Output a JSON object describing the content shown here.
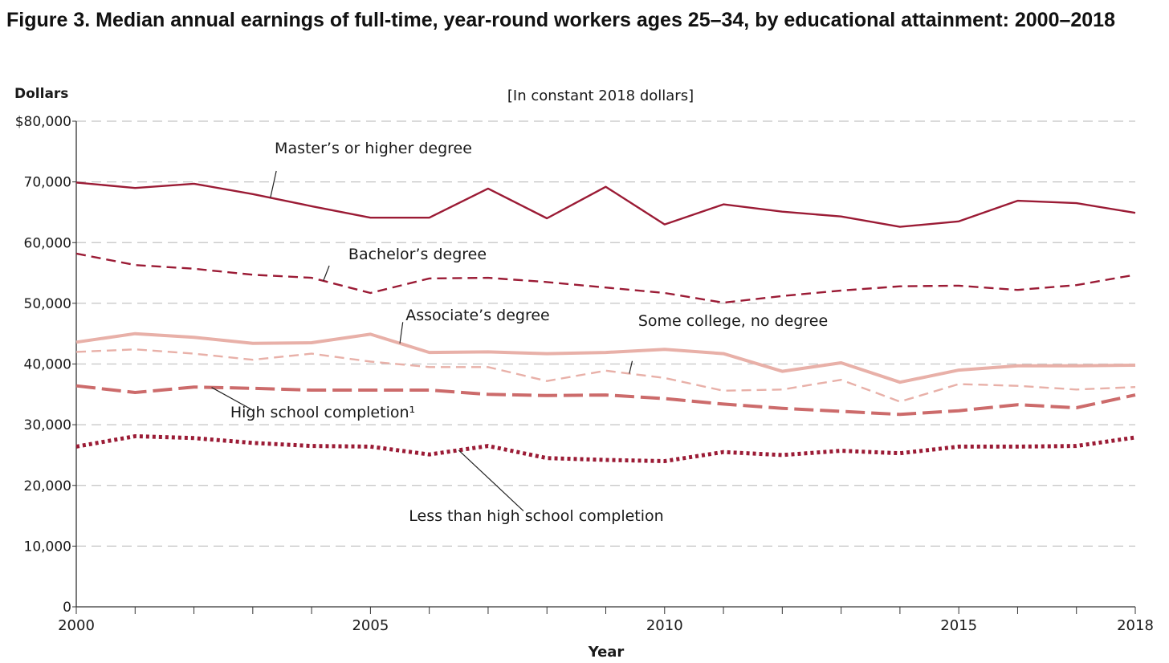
{
  "title": "Figure 3. Median annual earnings of full-time, year-round workers ages 25–34, by educational attainment: 2000–2018",
  "chart_data": {
    "type": "line",
    "subtitle": "[In constant 2018 dollars]",
    "ylabel": "Dollars",
    "xlabel": "Year",
    "ylim": [
      0,
      80000
    ],
    "xlim": [
      2000,
      2018
    ],
    "yticks": [
      0,
      10000,
      20000,
      30000,
      40000,
      50000,
      60000,
      70000,
      80000
    ],
    "ytick_labels": [
      "0",
      "10,000",
      "20,000",
      "30,000",
      "40,000",
      "50,000",
      "60,000",
      "70,000",
      "$80,000"
    ],
    "xticks": [
      2000,
      2005,
      2010,
      2015,
      2018
    ],
    "xtick_labels": [
      "2000",
      "2005",
      "2010",
      "2015",
      "2018"
    ],
    "grid": "horizontal dashed",
    "x": [
      2000,
      2001,
      2002,
      2003,
      2004,
      2005,
      2006,
      2007,
      2008,
      2009,
      2010,
      2011,
      2012,
      2013,
      2014,
      2015,
      2016,
      2017,
      2018
    ],
    "series": [
      {
        "name": "Master’s or higher degree",
        "color": "#9b1b35",
        "style": "solid",
        "values": [
          69900,
          69000,
          69700,
          68000,
          66000,
          64100,
          64100,
          68900,
          64000,
          69200,
          63000,
          66300,
          65100,
          64300,
          62600,
          63500,
          66900,
          66500,
          64900
        ]
      },
      {
        "name": "Bachelor’s degree",
        "color": "#9b1b35",
        "style": "dashed",
        "values": [
          58200,
          56300,
          55700,
          54700,
          54200,
          51700,
          54100,
          54200,
          53500,
          52600,
          51700,
          50100,
          51200,
          52100,
          52800,
          52900,
          52200,
          53000,
          54700
        ]
      },
      {
        "name": "Associate’s degree",
        "color": "#e8b0a8",
        "style": "solid-thick",
        "values": [
          43600,
          45000,
          44400,
          43400,
          43500,
          44900,
          41900,
          42000,
          41700,
          41900,
          42400,
          41700,
          38800,
          40200,
          37000,
          39000,
          39700,
          39700,
          39800
        ]
      },
      {
        "name": "Some college, no degree",
        "color": "#e8b0a8",
        "style": "dashed",
        "values": [
          42000,
          42400,
          41700,
          40700,
          41700,
          40400,
          39500,
          39500,
          37200,
          38900,
          37700,
          35600,
          35800,
          37400,
          33800,
          36700,
          36400,
          35800,
          36200
        ]
      },
      {
        "name": "High school completion¹",
        "color": "#cc6b6b",
        "style": "long-dashed-thick",
        "values": [
          36400,
          35300,
          36200,
          36000,
          35700,
          35700,
          35700,
          35000,
          34800,
          34900,
          34300,
          33400,
          32700,
          32200,
          31700,
          32300,
          33300,
          32800,
          34900
        ]
      },
      {
        "name": "Less than high school completion",
        "color": "#9b1b35",
        "style": "dotted-thick",
        "values": [
          26400,
          28100,
          27800,
          27000,
          26500,
          26400,
          25100,
          26500,
          24500,
          24200,
          24000,
          25500,
          25000,
          25700,
          25300,
          26400,
          26400,
          26500,
          27900
        ]
      }
    ],
    "annotations": [
      {
        "text": "Master’s or higher degree"
      },
      {
        "text": "Bachelor’s degree"
      },
      {
        "text": "Associate’s degree"
      },
      {
        "text": "Some college, no degree"
      },
      {
        "text": "High school completion¹"
      },
      {
        "text": "Less than high school completion"
      }
    ]
  }
}
